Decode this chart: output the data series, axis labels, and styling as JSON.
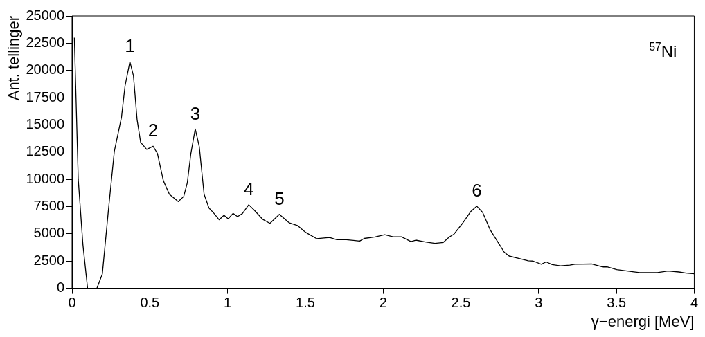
{
  "chart_data": {
    "type": "line",
    "xlabel": "γ−energi [MeV]",
    "ylabel": "Ant. tellinger",
    "x": [
      0.015,
      0.04,
      0.07,
      0.1,
      0.16,
      0.195,
      0.234,
      0.272,
      0.318,
      0.341,
      0.372,
      0.395,
      0.418,
      0.441,
      0.48,
      0.521,
      0.549,
      0.587,
      0.626,
      0.683,
      0.718,
      0.741,
      0.764,
      0.792,
      0.818,
      0.849,
      0.88,
      0.91,
      0.946,
      0.977,
      1.004,
      1.035,
      1.064,
      1.095,
      1.136,
      1.172,
      1.226,
      1.272,
      1.333,
      1.395,
      1.449,
      1.503,
      1.572,
      1.656,
      1.702,
      1.764,
      1.849,
      1.879,
      1.948,
      2.01,
      2.064,
      2.118,
      2.179,
      2.21,
      2.271,
      2.333,
      2.387,
      2.425,
      2.456,
      2.51,
      2.564,
      2.602,
      2.64,
      2.687,
      2.733,
      2.779,
      2.81,
      2.871,
      2.933,
      2.964,
      3.017,
      3.048,
      3.087,
      3.14,
      3.2,
      3.233,
      3.34,
      3.409,
      3.44,
      3.502,
      3.594,
      3.648,
      3.763,
      3.832,
      3.902,
      3.948,
      4.0
    ],
    "values": [
      23000,
      10000,
      4000,
      0,
      0,
      1330,
      7190,
      12580,
      15700,
      18600,
      20800,
      19500,
      15500,
      13400,
      12750,
      13040,
      12375,
      9875,
      8625,
      7960,
      8430,
      9680,
      12375,
      14625,
      13000,
      8625,
      7375,
      6920,
      6290,
      6710,
      6375,
      6875,
      6580,
      6855,
      7670,
      7170,
      6330,
      5960,
      6790,
      6020,
      5770,
      5125,
      4560,
      4670,
      4460,
      4460,
      4330,
      4580,
      4710,
      4920,
      4730,
      4730,
      4290,
      4420,
      4250,
      4125,
      4210,
      4710,
      4980,
      5960,
      7060,
      7540,
      6960,
      5400,
      4350,
      3310,
      2960,
      2750,
      2520,
      2500,
      2210,
      2420,
      2170,
      2060,
      2125,
      2210,
      2230,
      1960,
      1960,
      1710,
      1540,
      1440,
      1440,
      1580,
      1500,
      1400,
      1330
    ],
    "color": "#000000",
    "marker": "none",
    "line_style": "solid",
    "xlim": [
      0,
      4
    ],
    "xticks": [
      0,
      0.5,
      1,
      1.5,
      2,
      2.5,
      3,
      3.5,
      4
    ],
    "ylim": [
      0,
      25000
    ],
    "yticks": [
      0,
      2500,
      5000,
      7500,
      10000,
      12500,
      15000,
      17500,
      20000,
      22500,
      25000
    ],
    "grid": false,
    "legend": false,
    "annotations": [
      {
        "text": "1",
        "x": 0.372,
        "y": 20800
      },
      {
        "text": "2",
        "x": 0.521,
        "y": 13040
      },
      {
        "text": "3",
        "x": 0.792,
        "y": 14625
      },
      {
        "text": "4",
        "x": 1.136,
        "y": 7670
      },
      {
        "text": "5",
        "x": 1.333,
        "y": 6790
      },
      {
        "text": "6",
        "x": 2.602,
        "y": 7540
      },
      "$^{57}$Ni"
    ]
  }
}
